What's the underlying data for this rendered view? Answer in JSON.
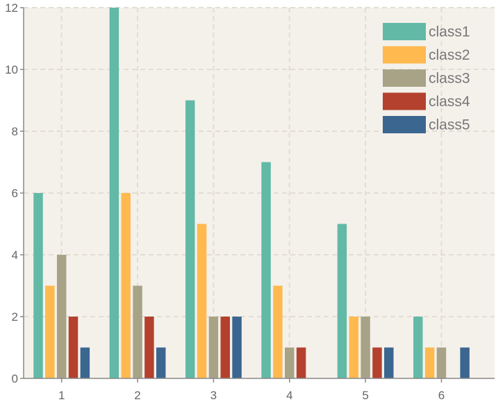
{
  "chart_data": {
    "type": "bar",
    "categories": [
      "1",
      "2",
      "3",
      "4",
      "5",
      "6"
    ],
    "series": [
      {
        "name": "class1",
        "color": "#62b9a6",
        "values": [
          6,
          12,
          9,
          7,
          5,
          2
        ]
      },
      {
        "name": "class2",
        "color": "#ffb94f",
        "values": [
          3,
          6,
          5,
          3,
          2,
          1
        ]
      },
      {
        "name": "class3",
        "color": "#a8a387",
        "values": [
          4,
          3,
          2,
          1,
          2,
          1
        ]
      },
      {
        "name": "class4",
        "color": "#b4412e",
        "values": [
          2,
          2,
          2,
          1,
          1,
          0
        ]
      },
      {
        "name": "class5",
        "color": "#3b6690",
        "values": [
          1,
          1,
          2,
          0,
          1,
          1
        ]
      }
    ],
    "y_ticks": [
      "0",
      "2",
      "4",
      "6",
      "8",
      "10",
      "12"
    ],
    "ylim": [
      0,
      12
    ],
    "xlim": [
      0.5,
      6.7
    ],
    "grid": true,
    "legend_position": "top-right",
    "background_color": "#f4f1eb",
    "grid_color": "#e2ddd3",
    "axis_color": "#888888"
  }
}
